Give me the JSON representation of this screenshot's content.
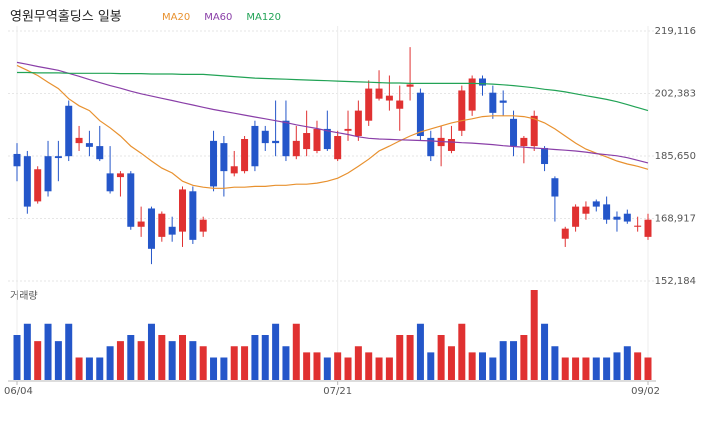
{
  "chart_data": {
    "type": "candlestick",
    "title": "영원무역홀딩스 일봉",
    "volume_label": "거래량",
    "up_color": "#e03131",
    "down_color": "#2456c9",
    "categories": [
      "06/04",
      null,
      null,
      null,
      null,
      null,
      null,
      null,
      null,
      null,
      null,
      null,
      null,
      null,
      null,
      null,
      null,
      null,
      null,
      null,
      null,
      null,
      null,
      null,
      null,
      null,
      null,
      null,
      null,
      null,
      null,
      "07/21",
      null,
      null,
      null,
      null,
      null,
      null,
      null,
      null,
      null,
      null,
      null,
      null,
      null,
      null,
      null,
      null,
      null,
      null,
      null,
      null,
      null,
      null,
      null,
      null,
      null,
      null,
      null,
      null,
      null,
      "09/02"
    ],
    "open": [
      186200,
      185600,
      173500,
      185600,
      185600,
      199100,
      189100,
      189100,
      188300,
      181000,
      180000,
      181000,
      166700,
      171600,
      164000,
      166700,
      165400,
      176200,
      165400,
      189700,
      189100,
      181000,
      181600,
      193700,
      192400,
      189700,
      195100,
      185600,
      187500,
      187000,
      192900,
      184800,
      192400,
      191000,
      195100,
      201000,
      200500,
      198300,
      204200,
      202600,
      190500,
      188300,
      187000,
      192400,
      197800,
      206400,
      202600,
      200500,
      195600,
      188300,
      188300,
      187800,
      179700,
      163500,
      166700,
      170200,
      173500,
      172700,
      169400,
      170200,
      166700,
      164000
    ],
    "high": [
      189100,
      187000,
      182900,
      189700,
      189700,
      200500,
      193700,
      192400,
      193700,
      188300,
      181600,
      181600,
      172100,
      172100,
      170800,
      169400,
      177500,
      177500,
      169400,
      192400,
      191000,
      187000,
      191000,
      195100,
      193700,
      200500,
      200500,
      193700,
      197800,
      195100,
      197800,
      192400,
      197800,
      200500,
      205900,
      208600,
      207200,
      204500,
      214800,
      203700,
      192400,
      193700,
      193700,
      204500,
      207200,
      207200,
      204500,
      203200,
      197800,
      191000,
      197800,
      188300,
      180200,
      166700,
      172700,
      173500,
      174000,
      174800,
      170800,
      171300,
      169400,
      170200
    ],
    "low": [
      178900,
      170200,
      172900,
      174800,
      178900,
      184300,
      187000,
      185600,
      184300,
      175600,
      174800,
      165900,
      164000,
      156700,
      162700,
      162700,
      161300,
      162100,
      164000,
      176200,
      174800,
      180200,
      181000,
      181600,
      187000,
      185600,
      184300,
      184800,
      185600,
      186400,
      187000,
      184300,
      189700,
      189700,
      193700,
      200500,
      197800,
      192400,
      200500,
      189700,
      184300,
      182900,
      186400,
      191000,
      196400,
      201800,
      195600,
      196400,
      185600,
      183700,
      187000,
      181600,
      168100,
      161300,
      165400,
      168600,
      170800,
      167500,
      165400,
      167500,
      165400,
      163200
    ],
    "close": [
      182900,
      172100,
      182100,
      176200,
      185100,
      185600,
      190500,
      188100,
      184800,
      176200,
      181000,
      166700,
      168100,
      160800,
      170200,
      164600,
      176700,
      163200,
      168600,
      177500,
      181600,
      182900,
      190200,
      182900,
      189100,
      189100,
      185600,
      189700,
      191800,
      192900,
      187500,
      191000,
      192900,
      197800,
      203700,
      203700,
      201800,
      200500,
      204800,
      191000,
      185600,
      190500,
      190200,
      203200,
      206400,
      204500,
      197200,
      199900,
      188300,
      190500,
      196400,
      183500,
      174800,
      166200,
      172100,
      172100,
      172100,
      168600,
      168600,
      168100,
      167000,
      168600
    ],
    "volume": [
      44,
      55,
      38,
      55,
      38,
      55,
      22,
      22,
      22,
      33,
      38,
      44,
      38,
      55,
      44,
      38,
      44,
      38,
      33,
      22,
      22,
      33,
      33,
      44,
      44,
      55,
      33,
      55,
      27,
      27,
      22,
      27,
      22,
      33,
      27,
      22,
      22,
      44,
      44,
      55,
      27,
      44,
      33,
      55,
      27,
      27,
      22,
      38,
      38,
      44,
      88,
      55,
      33,
      22,
      22,
      22,
      22,
      22,
      27,
      33,
      27,
      22
    ],
    "series": [
      {
        "name": "MA20",
        "color": "#e8912f",
        "values": [
          209900,
          208600,
          207200,
          205400,
          203700,
          201000,
          199100,
          197800,
          195100,
          193200,
          191000,
          188300,
          186400,
          184300,
          182400,
          181100,
          178900,
          177800,
          177300,
          177000,
          177000,
          177300,
          177300,
          177500,
          177500,
          177800,
          177800,
          178100,
          178100,
          178400,
          178900,
          179700,
          181100,
          182900,
          184800,
          187000,
          188300,
          189700,
          191000,
          192100,
          192900,
          193700,
          194500,
          195100,
          195600,
          196200,
          196400,
          196400,
          196400,
          196200,
          195600,
          194500,
          192900,
          191000,
          189100,
          187500,
          186400,
          185400,
          184300,
          183500,
          182900,
          182100
        ]
      },
      {
        "name": "MA60",
        "color": "#8a3fa8",
        "values": [
          210700,
          210200,
          209600,
          209100,
          208600,
          207800,
          207000,
          206100,
          205300,
          204500,
          203800,
          203000,
          202300,
          201700,
          201100,
          200500,
          199900,
          199300,
          198700,
          198100,
          197600,
          197100,
          196600,
          196100,
          195600,
          195100,
          194600,
          194000,
          193500,
          193000,
          192400,
          191900,
          191400,
          190800,
          190400,
          190200,
          190100,
          190000,
          189900,
          189800,
          189700,
          189500,
          189400,
          189200,
          189100,
          188900,
          188700,
          188400,
          188200,
          188000,
          187800,
          187600,
          187400,
          187200,
          187000,
          186700,
          186300,
          186000,
          185700,
          185200,
          184500,
          183800
        ]
      },
      {
        "name": "MA120",
        "color": "#22a356",
        "values": [
          208000,
          208000,
          207900,
          207900,
          207900,
          207800,
          207800,
          207800,
          207800,
          207800,
          207700,
          207700,
          207700,
          207600,
          207600,
          207600,
          207500,
          207500,
          207500,
          207300,
          207100,
          206900,
          206700,
          206500,
          206400,
          206300,
          206200,
          206100,
          206000,
          205900,
          205800,
          205700,
          205600,
          205500,
          205400,
          205300,
          205200,
          205200,
          205100,
          205100,
          205100,
          205100,
          205100,
          205100,
          205100,
          205000,
          204900,
          204700,
          204500,
          204200,
          203900,
          203500,
          203200,
          202800,
          202300,
          201800,
          201300,
          200800,
          200200,
          199400,
          198600,
          197800
        ]
      }
    ],
    "ylim": [
      152184,
      219116
    ],
    "yticks": [
      {
        "value": 152184,
        "label": "152,184"
      },
      {
        "value": 168917,
        "label": "168,917"
      },
      {
        "value": 185650,
        "label": "185,650"
      },
      {
        "value": 202383,
        "label": "202,383"
      },
      {
        "value": 219116,
        "label": "219,116"
      }
    ],
    "grid": true
  }
}
